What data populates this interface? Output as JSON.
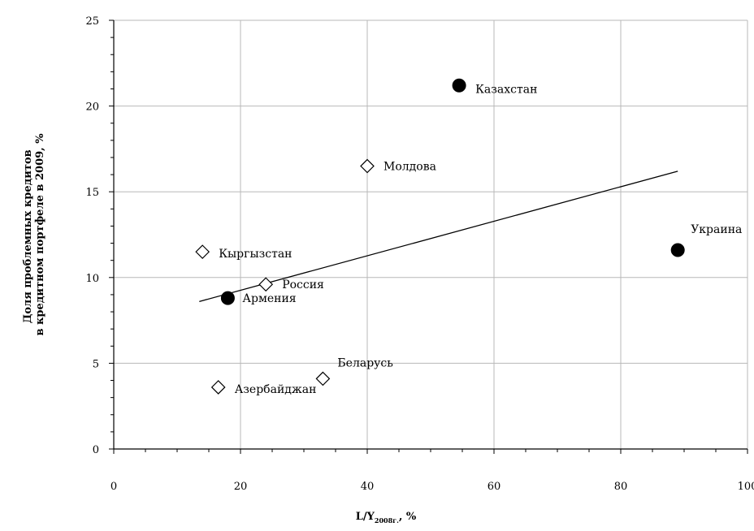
{
  "chart_data": {
    "type": "scatter",
    "xlabel_main": "L/Y",
    "xlabel_sub": "2008г.",
    "xlabel_unit": ", %",
    "ylabel_lines": [
      "Доля проблемных кредитов",
      "в кредитном портфеле   в 2009, %"
    ],
    "xlim": [
      0,
      100
    ],
    "ylim": [
      0,
      25
    ],
    "x_ticks": [
      0,
      20,
      40,
      60,
      80,
      100
    ],
    "y_ticks": [
      0,
      5,
      10,
      15,
      20,
      25
    ],
    "grid": true,
    "points": [
      {
        "label": "Казахстан",
        "x": 54.5,
        "y": 21.2,
        "marker": "filled-circle"
      },
      {
        "label": "Молдова",
        "x": 40.0,
        "y": 16.5,
        "marker": "open-diamond"
      },
      {
        "label": "Украина",
        "x": 89.0,
        "y": 11.6,
        "marker": "filled-circle"
      },
      {
        "label": "Кыргызстан",
        "x": 14.0,
        "y": 11.5,
        "marker": "open-diamond"
      },
      {
        "label": "Россия",
        "x": 24.0,
        "y": 9.6,
        "marker": "open-diamond"
      },
      {
        "label": "Армения",
        "x": 18.0,
        "y": 8.8,
        "marker": "filled-circle"
      },
      {
        "label": "Беларусь",
        "x": 33.0,
        "y": 4.1,
        "marker": "open-diamond"
      },
      {
        "label": "Азербайджан",
        "x": 16.5,
        "y": 3.6,
        "marker": "open-diamond"
      }
    ],
    "trendline": {
      "x": [
        13.5,
        89.0
      ],
      "y": [
        8.6,
        16.2
      ]
    }
  }
}
